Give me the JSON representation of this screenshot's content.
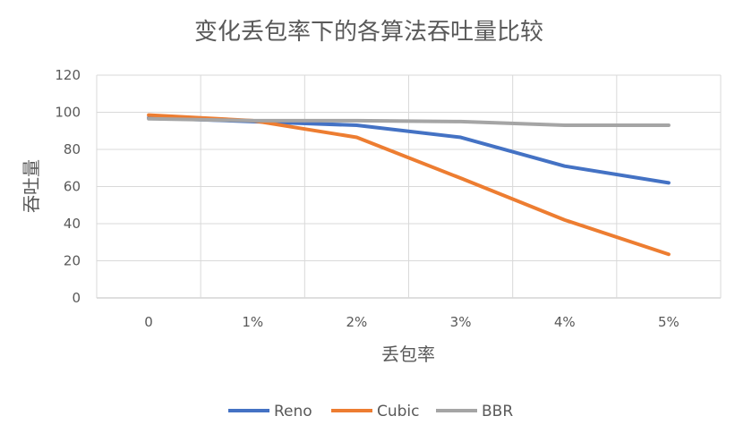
{
  "chart_data": {
    "type": "line",
    "title": "变化丢包率下的各算法吞吐量比较",
    "xlabel": "丢包率",
    "ylabel": "吞吐量",
    "categories": [
      "0",
      "1%",
      "2%",
      "3%",
      "4%",
      "5%"
    ],
    "ylim": [
      0,
      120
    ],
    "yticks": [
      "0",
      "20",
      "40",
      "60",
      "80",
      "100",
      "120"
    ],
    "grid": true,
    "legend_position": "bottom",
    "series": [
      {
        "name": "Reno",
        "color": "#4472C4",
        "values": [
          97,
          95,
          93,
          86.5,
          71,
          62
        ]
      },
      {
        "name": "Cubic",
        "color": "#ED7D31",
        "values": [
          98.5,
          95.5,
          86.5,
          64.5,
          42,
          23.5
        ]
      },
      {
        "name": "BBR",
        "color": "#A5A5A5",
        "values": [
          96.5,
          95.5,
          95.5,
          95,
          93,
          93
        ]
      }
    ]
  }
}
